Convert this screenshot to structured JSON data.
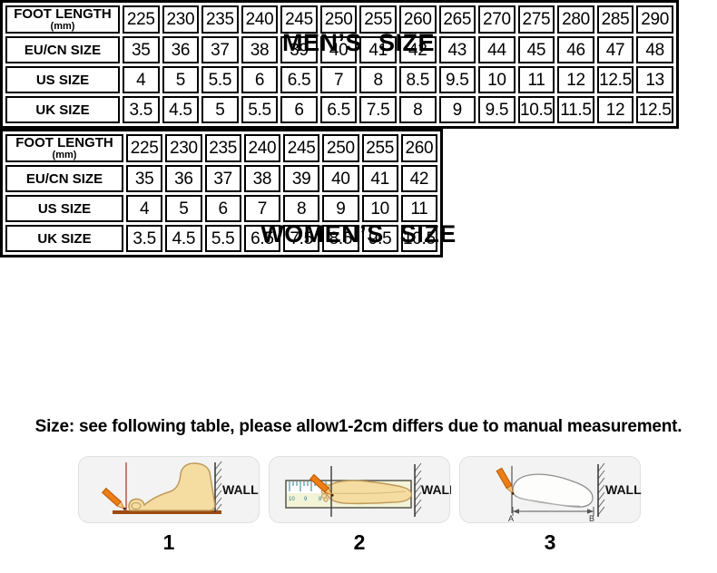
{
  "men_section": {
    "title": "MEN’S SIZE",
    "table": {
      "rows": [
        {
          "label": "FOOT LENGTH",
          "sublabel": "(mm)",
          "values": [
            "225",
            "230",
            "235",
            "240",
            "245",
            "250",
            "255",
            "260",
            "265",
            "270",
            "275",
            "280",
            "285",
            "290"
          ]
        },
        {
          "label": "EU/CN SIZE",
          "values": [
            "35",
            "36",
            "37",
            "38",
            "39",
            "40",
            "41",
            "42",
            "43",
            "44",
            "45",
            "46",
            "47",
            "48"
          ]
        },
        {
          "label": "US SIZE",
          "values": [
            "4",
            "5",
            "5.5",
            "6",
            "6.5",
            "7",
            "8",
            "8.5",
            "9.5",
            "10",
            "11",
            "12",
            "12.5",
            "13"
          ]
        },
        {
          "label": "UK SIZE",
          "values": [
            "3.5",
            "4.5",
            "5",
            "5.5",
            "6",
            "6.5",
            "7.5",
            "8",
            "9",
            "9.5",
            "10.5",
            "11.5",
            "12",
            "12.5"
          ]
        }
      ]
    }
  },
  "women_section": {
    "title": "WOMEN’S SIZE",
    "table": {
      "rows": [
        {
          "label": "FOOT LENGTH",
          "sublabel": "(mm)",
          "values": [
            "225",
            "230",
            "235",
            "240",
            "245",
            "250",
            "255",
            "260"
          ]
        },
        {
          "label": "EU/CN SIZE",
          "values": [
            "35",
            "36",
            "37",
            "38",
            "39",
            "40",
            "41",
            "42"
          ]
        },
        {
          "label": "US SIZE",
          "values": [
            "4",
            "5",
            "6",
            "7",
            "8",
            "9",
            "10",
            "11"
          ]
        },
        {
          "label": "UK SIZE",
          "values": [
            "3.5",
            "4.5",
            "5.5",
            "6.5",
            "7.5",
            "8.5",
            "9.5",
            "10.5"
          ]
        }
      ]
    }
  },
  "note": "Size: see following table, please allow1-2cm differs due to manual measurement.",
  "figures": [
    {
      "number": "1",
      "wall_label": "WALL"
    },
    {
      "number": "2",
      "wall_label": "WALL",
      "ruler_numbers": [
        "10",
        "9",
        "8"
      ]
    },
    {
      "number": "3",
      "wall_label": "WALL",
      "point_a": "A",
      "point_b": "B"
    }
  ],
  "colors": {
    "table_border": "#000000",
    "pencil_orange": "#ed7d14",
    "pencil_wood": "#f2c879",
    "skin": "#f5dda2",
    "skin_outline": "#c09a5a",
    "floor_brown": "#9c4a12",
    "toe_mark_red": "#b04030",
    "ruler_tick_teal": "#2e7b8c",
    "figure_box_bg": "#f3f3f3"
  }
}
